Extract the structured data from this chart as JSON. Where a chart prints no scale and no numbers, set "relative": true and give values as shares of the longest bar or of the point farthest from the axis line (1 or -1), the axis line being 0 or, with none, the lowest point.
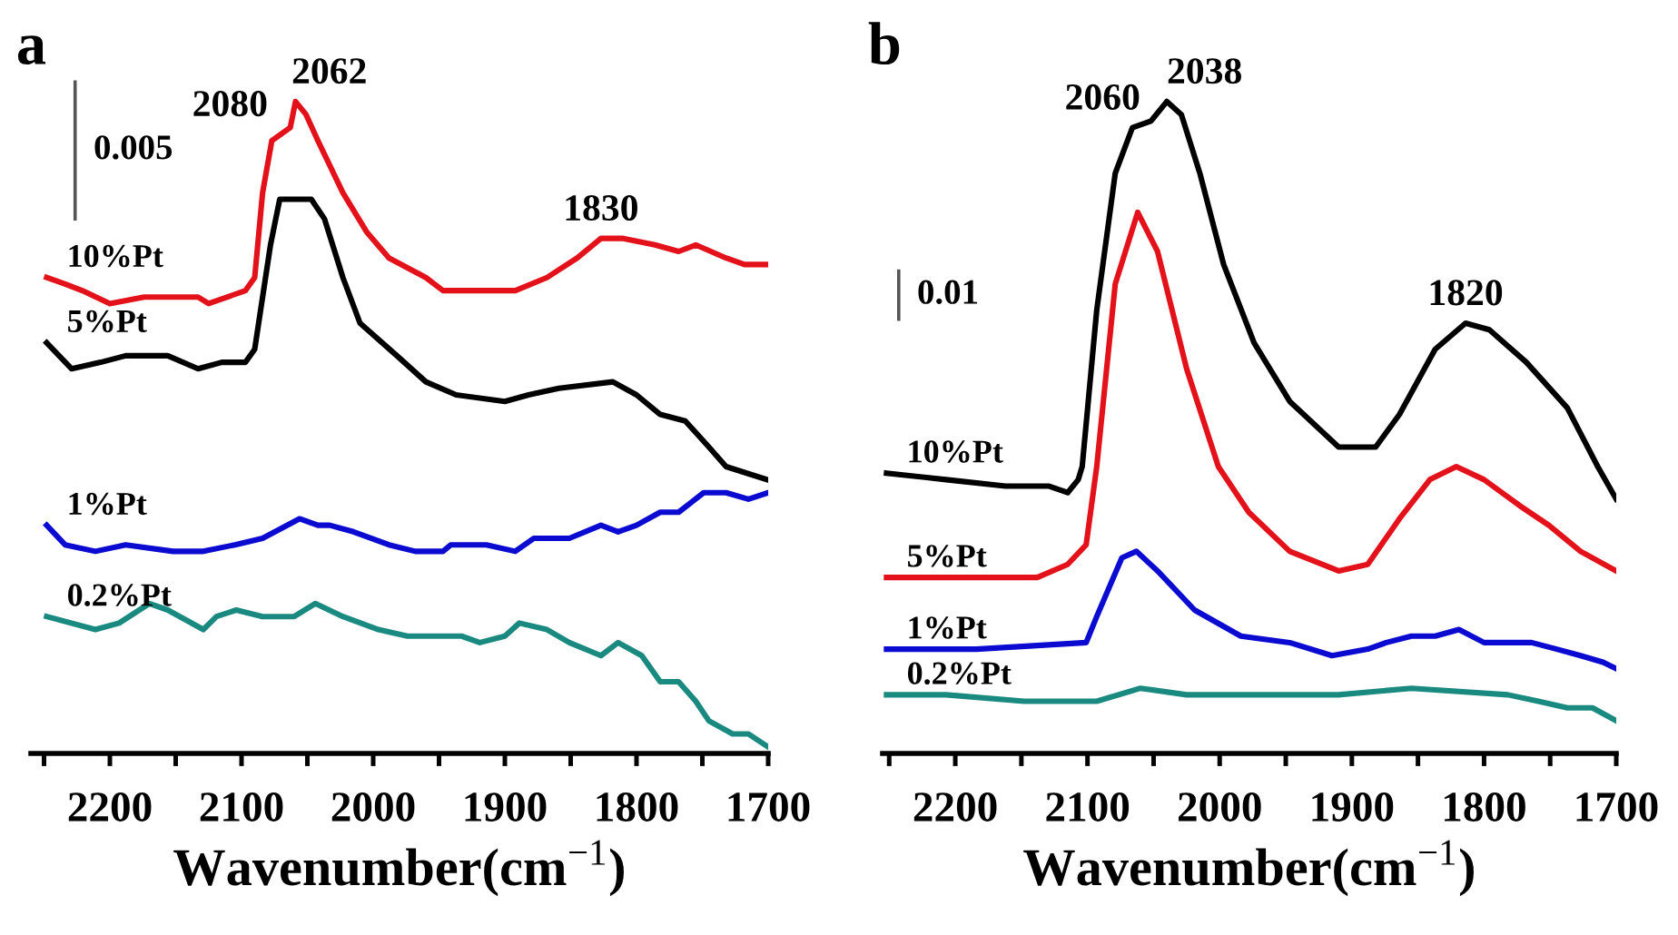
{
  "chart_data": [
    {
      "type": "line",
      "title": "a",
      "relative": true,
      "xlabel": "Wavenumber(cm$^{−1}$)",
      "xlim": [
        2260,
        1700
      ],
      "xticks": [
        {
          "value": 2250,
          "label": null
        },
        2200,
        {
          "value": 2150,
          "label": null
        },
        2100,
        {
          "value": 2050,
          "label": null
        },
        2000,
        {
          "value": 1950,
          "label": null
        },
        1900,
        {
          "value": 1850,
          "label": null
        },
        1800,
        {
          "value": 1750,
          "label": null
        },
        1700
      ],
      "tick_labels": "x",
      "grid": false,
      "legend": false,
      "annotations": [
        "0.005",
        {
          "text": "2080",
          "x": 2080,
          "y": 0.95
        },
        {
          "text": "2062",
          "x": 2062,
          "y": 1.0
        },
        {
          "text": "1830",
          "x": 1827,
          "y": 0.79
        }
      ],
      "series": [
        {
          "name": "10%Pt",
          "color": "#e3121a",
          "x": [
            2248,
            2234,
            2221,
            2200,
            2174,
            2156,
            2133,
            2125,
            2097,
            2090,
            2084,
            2077,
            2070,
            2063,
            2059,
            2051,
            2042,
            2023,
            2005,
            1988,
            1960,
            1947,
            1914,
            1892,
            1868,
            1845,
            1827,
            1810,
            1786,
            1768,
            1755,
            1732,
            1718,
            1700
          ],
          "values": [
            0.73,
            0.72,
            0.71,
            0.69,
            0.7,
            0.7,
            0.7,
            0.69,
            0.71,
            0.73,
            0.86,
            0.94,
            0.95,
            0.96,
            1.0,
            0.98,
            0.94,
            0.86,
            0.8,
            0.76,
            0.73,
            0.71,
            0.71,
            0.71,
            0.73,
            0.76,
            0.79,
            0.79,
            0.78,
            0.77,
            0.78,
            0.76,
            0.75,
            0.75
          ]
        },
        {
          "name": "5%Pt",
          "color": "#000000",
          "x": [
            2248,
            2229,
            2207,
            2188,
            2156,
            2133,
            2115,
            2097,
            2090,
            2078,
            2071,
            2060,
            2047,
            2037,
            2023,
            2010,
            1982,
            1960,
            1937,
            1900,
            1882,
            1859,
            1818,
            1800,
            1782,
            1763,
            1745,
            1732,
            1701
          ],
          "values": [
            0.63,
            0.59,
            0.6,
            0.61,
            0.61,
            0.59,
            0.6,
            0.6,
            0.62,
            0.78,
            0.85,
            0.85,
            0.85,
            0.82,
            0.73,
            0.66,
            0.61,
            0.57,
            0.55,
            0.54,
            0.55,
            0.56,
            0.57,
            0.55,
            0.52,
            0.51,
            0.47,
            0.44,
            0.42
          ]
        },
        {
          "name": "1%Pt",
          "color": "#0a0ad0",
          "x": [
            2248,
            2234,
            2211,
            2188,
            2152,
            2129,
            2105,
            2084,
            2056,
            2042,
            2033,
            2015,
            1988,
            1968,
            1947,
            1941,
            1914,
            1892,
            1878,
            1851,
            1827,
            1814,
            1800,
            1782,
            1768,
            1749,
            1732,
            1715,
            1700
          ],
          "values": [
            0.35,
            0.32,
            0.31,
            0.32,
            0.31,
            0.31,
            0.32,
            0.33,
            0.36,
            0.35,
            0.35,
            0.34,
            0.32,
            0.31,
            0.31,
            0.32,
            0.32,
            0.31,
            0.33,
            0.33,
            0.35,
            0.34,
            0.35,
            0.37,
            0.37,
            0.4,
            0.4,
            0.39,
            0.4
          ]
        },
        {
          "name": "0.2%Pt",
          "color": "#1a8a80",
          "x": [
            2248,
            2211,
            2193,
            2170,
            2156,
            2129,
            2119,
            2104,
            2084,
            2060,
            2044,
            2023,
            1996,
            1974,
            1933,
            1919,
            1900,
            1889,
            1868,
            1851,
            1827,
            1814,
            1796,
            1782,
            1768,
            1755,
            1745,
            1727,
            1715,
            1700
          ],
          "values": [
            0.21,
            0.19,
            0.2,
            0.23,
            0.22,
            0.19,
            0.21,
            0.22,
            0.21,
            0.21,
            0.23,
            0.21,
            0.19,
            0.18,
            0.18,
            0.17,
            0.18,
            0.2,
            0.19,
            0.17,
            0.15,
            0.17,
            0.15,
            0.11,
            0.11,
            0.08,
            0.05,
            0.03,
            0.03,
            0.01
          ]
        }
      ]
    },
    {
      "type": "line",
      "title": "b",
      "relative": true,
      "xlabel": "Wavenumber(cm$^{−1}$)",
      "xlim": [
        2255,
        1700
      ],
      "xticks": [
        {
          "value": 2250,
          "label": null
        },
        2200,
        {
          "value": 2150,
          "label": null
        },
        2100,
        {
          "value": 2050,
          "label": null
        },
        2000,
        {
          "value": 1950,
          "label": null
        },
        1900,
        {
          "value": 1850,
          "label": null
        },
        1800,
        {
          "value": 1750,
          "label": null
        },
        1700
      ],
      "tick_labels": "x",
      "grid": false,
      "legend": false,
      "annotations": [
        "0.01",
        {
          "text": "2060",
          "x": 2060,
          "y": 0.96
        },
        {
          "text": "2038",
          "x": 2040,
          "y": 1.0
        },
        {
          "text": "1820",
          "x": 1814,
          "y": 0.66
        }
      ],
      "series": [
        {
          "name": "10%Pt",
          "color": "#000000",
          "x": [
            2252,
            2207,
            2162,
            2129,
            2115,
            2107,
            2104,
            2093,
            2079,
            2066,
            2052,
            2040,
            2029,
            2015,
            1997,
            1974,
            1947,
            1910,
            1882,
            1864,
            1837,
            1814,
            1796,
            1768,
            1737,
            1714,
            1700
          ],
          "values": [
            0.43,
            0.42,
            0.41,
            0.41,
            0.4,
            0.42,
            0.44,
            0.68,
            0.89,
            0.96,
            0.97,
            1.0,
            0.98,
            0.89,
            0.75,
            0.63,
            0.54,
            0.47,
            0.47,
            0.52,
            0.62,
            0.66,
            0.65,
            0.6,
            0.53,
            0.44,
            0.39
          ]
        },
        {
          "name": "5%Pt",
          "color": "#e3121a",
          "x": [
            2252,
            2207,
            2138,
            2115,
            2101,
            2093,
            2079,
            2062,
            2047,
            2025,
            2001,
            1978,
            1947,
            1910,
            1888,
            1864,
            1841,
            1821,
            1800,
            1773,
            1751,
            1727,
            1700
          ],
          "values": [
            0.27,
            0.27,
            0.27,
            0.29,
            0.32,
            0.44,
            0.72,
            0.83,
            0.77,
            0.59,
            0.44,
            0.37,
            0.31,
            0.28,
            0.29,
            0.36,
            0.42,
            0.44,
            0.42,
            0.38,
            0.35,
            0.31,
            0.28
          ]
        },
        {
          "name": "1%Pt",
          "color": "#0a0ad0",
          "x": [
            2252,
            2184,
            2101,
            2093,
            2074,
            2063,
            2047,
            2019,
            1984,
            1947,
            1915,
            1888,
            1874,
            1855,
            1837,
            1819,
            1800,
            1782,
            1764,
            1745,
            1727,
            1710,
            1700
          ],
          "values": [
            0.16,
            0.16,
            0.17,
            0.21,
            0.3,
            0.31,
            0.28,
            0.22,
            0.18,
            0.17,
            0.15,
            0.16,
            0.17,
            0.18,
            0.18,
            0.19,
            0.17,
            0.17,
            0.17,
            0.16,
            0.15,
            0.14,
            0.13
          ]
        },
        {
          "name": "0.2%Pt",
          "color": "#1a8a80",
          "x": [
            2252,
            2207,
            2148,
            2093,
            2060,
            2025,
            1956,
            1910,
            1855,
            1782,
            1759,
            1737,
            1718,
            1700
          ],
          "values": [
            0.09,
            0.09,
            0.08,
            0.08,
            0.1,
            0.09,
            0.09,
            0.09,
            0.1,
            0.09,
            0.08,
            0.07,
            0.07,
            0.05
          ]
        }
      ]
    }
  ]
}
